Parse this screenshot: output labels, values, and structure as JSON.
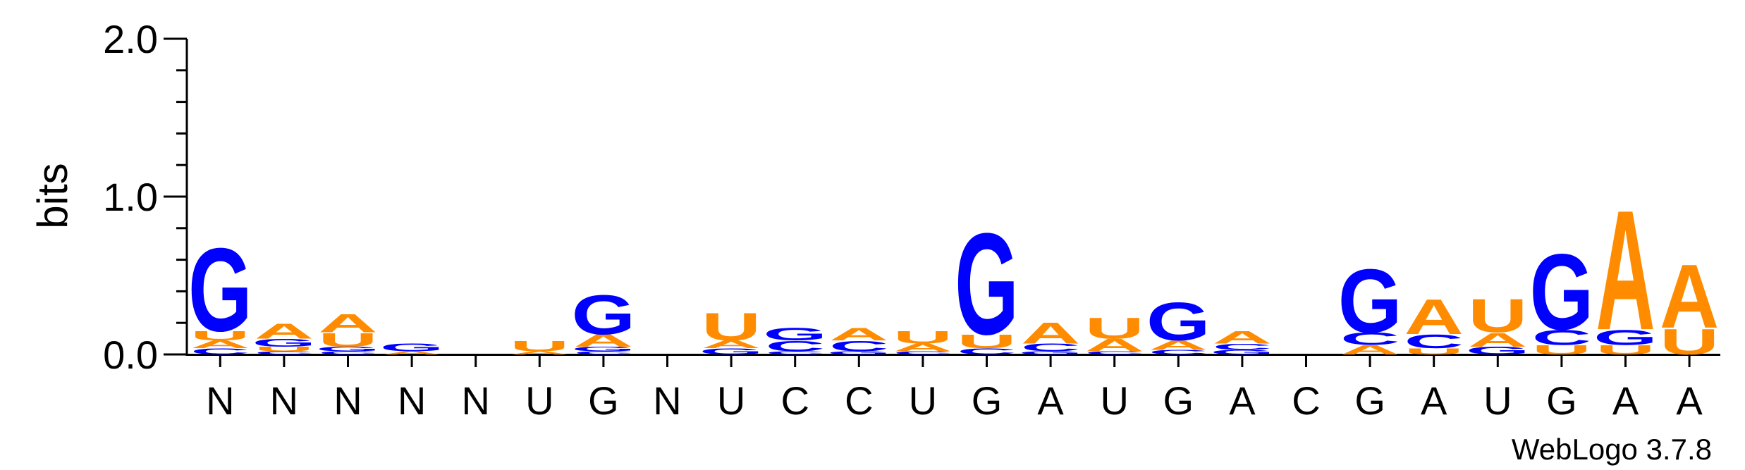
{
  "chart_data": {
    "type": "sequence-logo",
    "ylabel": "bits",
    "ylim": [
      0,
      2.0
    ],
    "yticks": [
      "0.0",
      "1.0",
      "2.0"
    ],
    "credit": "WebLogo 3.7.8",
    "colors": {
      "A": "#ff8c00",
      "U": "#ff8c00",
      "G": "#0000ff",
      "C": "#0000ff"
    },
    "positions": [
      {
        "label": "N",
        "stack": [
          {
            "b": "C",
            "h": 0.04
          },
          {
            "b": "A",
            "h": 0.05
          },
          {
            "b": "U",
            "h": 0.06
          },
          {
            "b": "G",
            "h": 0.55
          }
        ]
      },
      {
        "label": "N",
        "stack": [
          {
            "b": "C",
            "h": 0.02
          },
          {
            "b": "U",
            "h": 0.03
          },
          {
            "b": "G",
            "h": 0.05
          },
          {
            "b": "A",
            "h": 0.1
          }
        ]
      },
      {
        "label": "N",
        "stack": [
          {
            "b": "C",
            "h": 0.02
          },
          {
            "b": "G",
            "h": 0.03
          },
          {
            "b": "U",
            "h": 0.09
          },
          {
            "b": "A",
            "h": 0.12
          }
        ]
      },
      {
        "label": "N",
        "stack": [
          {
            "b": "A",
            "h": 0.02
          },
          {
            "b": "G",
            "h": 0.05
          }
        ]
      },
      {
        "label": "N",
        "stack": []
      },
      {
        "label": "U",
        "stack": [
          {
            "b": "A",
            "h": 0.02
          },
          {
            "b": "U",
            "h": 0.07
          }
        ]
      },
      {
        "label": "G",
        "stack": [
          {
            "b": "C",
            "h": 0.02
          },
          {
            "b": "G",
            "h": 0.03
          },
          {
            "b": "A",
            "h": 0.08
          },
          {
            "b": "G",
            "h": 0.26
          }
        ]
      },
      {
        "label": "N",
        "stack": []
      },
      {
        "label": "U",
        "stack": [
          {
            "b": "G",
            "h": 0.04
          },
          {
            "b": "A",
            "h": 0.05
          },
          {
            "b": "U",
            "h": 0.18
          }
        ]
      },
      {
        "label": "C",
        "stack": [
          {
            "b": "C",
            "h": 0.02
          },
          {
            "b": "C",
            "h": 0.07
          },
          {
            "b": "G",
            "h": 0.08
          }
        ]
      },
      {
        "label": "C",
        "stack": [
          {
            "b": "G",
            "h": 0.02
          },
          {
            "b": "C",
            "h": 0.07
          },
          {
            "b": "A",
            "h": 0.08
          }
        ]
      },
      {
        "label": "U",
        "stack": [
          {
            "b": "C",
            "h": 0.02
          },
          {
            "b": "A",
            "h": 0.05
          },
          {
            "b": "U",
            "h": 0.08
          }
        ]
      },
      {
        "label": "G",
        "stack": [
          {
            "b": "C",
            "h": 0.04
          },
          {
            "b": "U",
            "h": 0.09
          },
          {
            "b": "G",
            "h": 0.67
          }
        ]
      },
      {
        "label": "A",
        "stack": [
          {
            "b": "G",
            "h": 0.02
          },
          {
            "b": "C",
            "h": 0.05
          },
          {
            "b": "A",
            "h": 0.14
          }
        ]
      },
      {
        "label": "U",
        "stack": [
          {
            "b": "C",
            "h": 0.02
          },
          {
            "b": "A",
            "h": 0.08
          },
          {
            "b": "U",
            "h": 0.14
          }
        ]
      },
      {
        "label": "G",
        "stack": [
          {
            "b": "C",
            "h": 0.03
          },
          {
            "b": "A",
            "h": 0.06
          },
          {
            "b": "G",
            "h": 0.25
          }
        ]
      },
      {
        "label": "A",
        "stack": [
          {
            "b": "G",
            "h": 0.03
          },
          {
            "b": "C",
            "h": 0.04
          },
          {
            "b": "A",
            "h": 0.08
          }
        ]
      },
      {
        "label": "C",
        "stack": []
      },
      {
        "label": "G",
        "stack": [
          {
            "b": "A",
            "h": 0.06
          },
          {
            "b": "C",
            "h": 0.08
          },
          {
            "b": "G",
            "h": 0.42
          }
        ]
      },
      {
        "label": "A",
        "stack": [
          {
            "b": "U",
            "h": 0.04
          },
          {
            "b": "C",
            "h": 0.09
          },
          {
            "b": "A",
            "h": 0.23
          }
        ]
      },
      {
        "label": "U",
        "stack": [
          {
            "b": "G",
            "h": 0.05
          },
          {
            "b": "A",
            "h": 0.09
          },
          {
            "b": "U",
            "h": 0.22
          }
        ]
      },
      {
        "label": "G",
        "stack": [
          {
            "b": "U",
            "h": 0.06
          },
          {
            "b": "C",
            "h": 0.1
          },
          {
            "b": "G",
            "h": 0.5
          }
        ]
      },
      {
        "label": "A",
        "stack": [
          {
            "b": "U",
            "h": 0.06
          },
          {
            "b": "G",
            "h": 0.1
          },
          {
            "b": "A",
            "h": 0.79
          }
        ]
      },
      {
        "label": "A",
        "stack": [
          {
            "b": "U",
            "h": 0.17
          },
          {
            "b": "A",
            "h": 0.42
          }
        ]
      }
    ]
  }
}
